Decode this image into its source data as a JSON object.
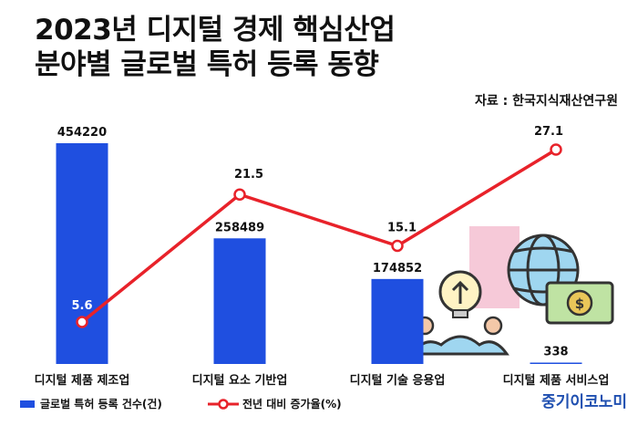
{
  "title_line1": "2023년 디지털 경제 핵심산업",
  "title_line2": "분야별 글로벌 특허 등록 동향",
  "source": "자료 : 한국지식재산연구원",
  "brand": "중기이코노미",
  "icons": [
    "lightbulb-people-icon",
    "globe-money-icon"
  ],
  "chart_data": {
    "type": "bar",
    "categories": [
      "디지털 제품 제조업",
      "디지털 요소 기반업",
      "디지털 기술 응용업",
      "디지털 제품 서비스업"
    ],
    "series": [
      {
        "name": "글로벌 특허 등록 건수(건)",
        "type": "bar",
        "values": [
          454220,
          258489,
          174852,
          338
        ],
        "color": "#1f4fe0"
      },
      {
        "name": "전년 대비 증가율(%)",
        "type": "line",
        "values": [
          5.6,
          21.5,
          15.1,
          27.1
        ],
        "color": "#e8222a"
      }
    ],
    "legend_position": "bottom-left"
  }
}
